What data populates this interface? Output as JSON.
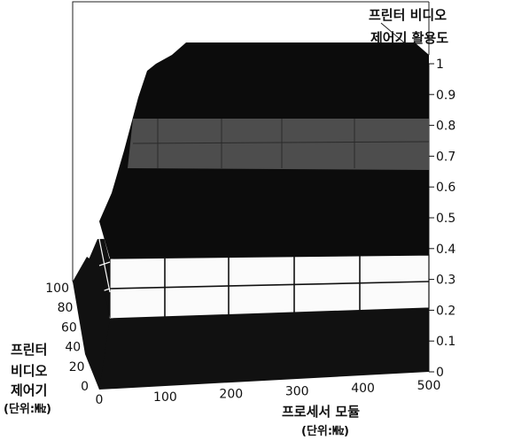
{
  "chart_data": {
    "type": "surface",
    "z_axis_title": [
      "프린터 비디오",
      "제어기 활용도"
    ],
    "x_axis_title": [
      "프로세서 모듈",
      "(단위:㎒)"
    ],
    "y_axis_title": [
      "프린터",
      "비디오",
      "제어기",
      "(단위:㎒)"
    ],
    "x_ticks": [
      "0",
      "100",
      "200",
      "300",
      "400",
      "500"
    ],
    "y_ticks": [
      "0",
      "20",
      "40",
      "60",
      "80",
      "100"
    ],
    "z_ticks": [
      "0",
      "0.1",
      "0.2",
      "0.3",
      "0.4",
      "0.5",
      "0.6",
      "0.7",
      "0.8",
      "0.9",
      "1"
    ],
    "xlim": [
      0,
      500
    ],
    "ylim": [
      0,
      100
    ],
    "zlim": [
      0,
      1
    ],
    "bands": [
      {
        "range": [
          0,
          0.2
        ],
        "color": "#111111"
      },
      {
        "range": [
          0.2,
          0.3
        ],
        "color": "#ffffff"
      },
      {
        "range": [
          0.3,
          0.4
        ],
        "color": "#f4f4f4"
      },
      {
        "range": [
          0.4,
          0.7
        ],
        "color": "#0c0c0c"
      },
      {
        "range": [
          0.7,
          0.8
        ],
        "color": "#555555"
      },
      {
        "range": [
          0.8,
          1.0
        ],
        "color": "#0c0c0c"
      }
    ],
    "colors": {
      "surface_dark": "#0c0c0c",
      "surface_light": "#ffffff",
      "surface_grey": "#555555"
    }
  }
}
